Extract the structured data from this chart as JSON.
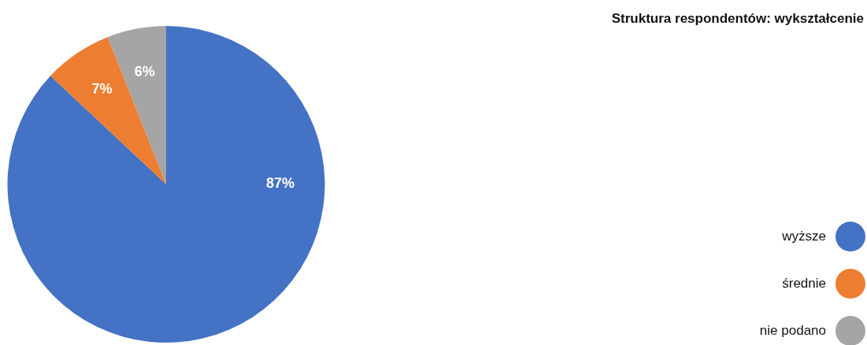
{
  "chart_data": {
    "type": "pie",
    "title": "Struktura respondentów: wykształcenie",
    "categories": [
      "wyższe",
      "średnie",
      "nie podano"
    ],
    "values": [
      87,
      7,
      6
    ],
    "value_labels": [
      "87%",
      "7%",
      "6%"
    ],
    "colors": [
      "#4472c4",
      "#ed7d31",
      "#a5a5a5"
    ],
    "legend": "right"
  }
}
